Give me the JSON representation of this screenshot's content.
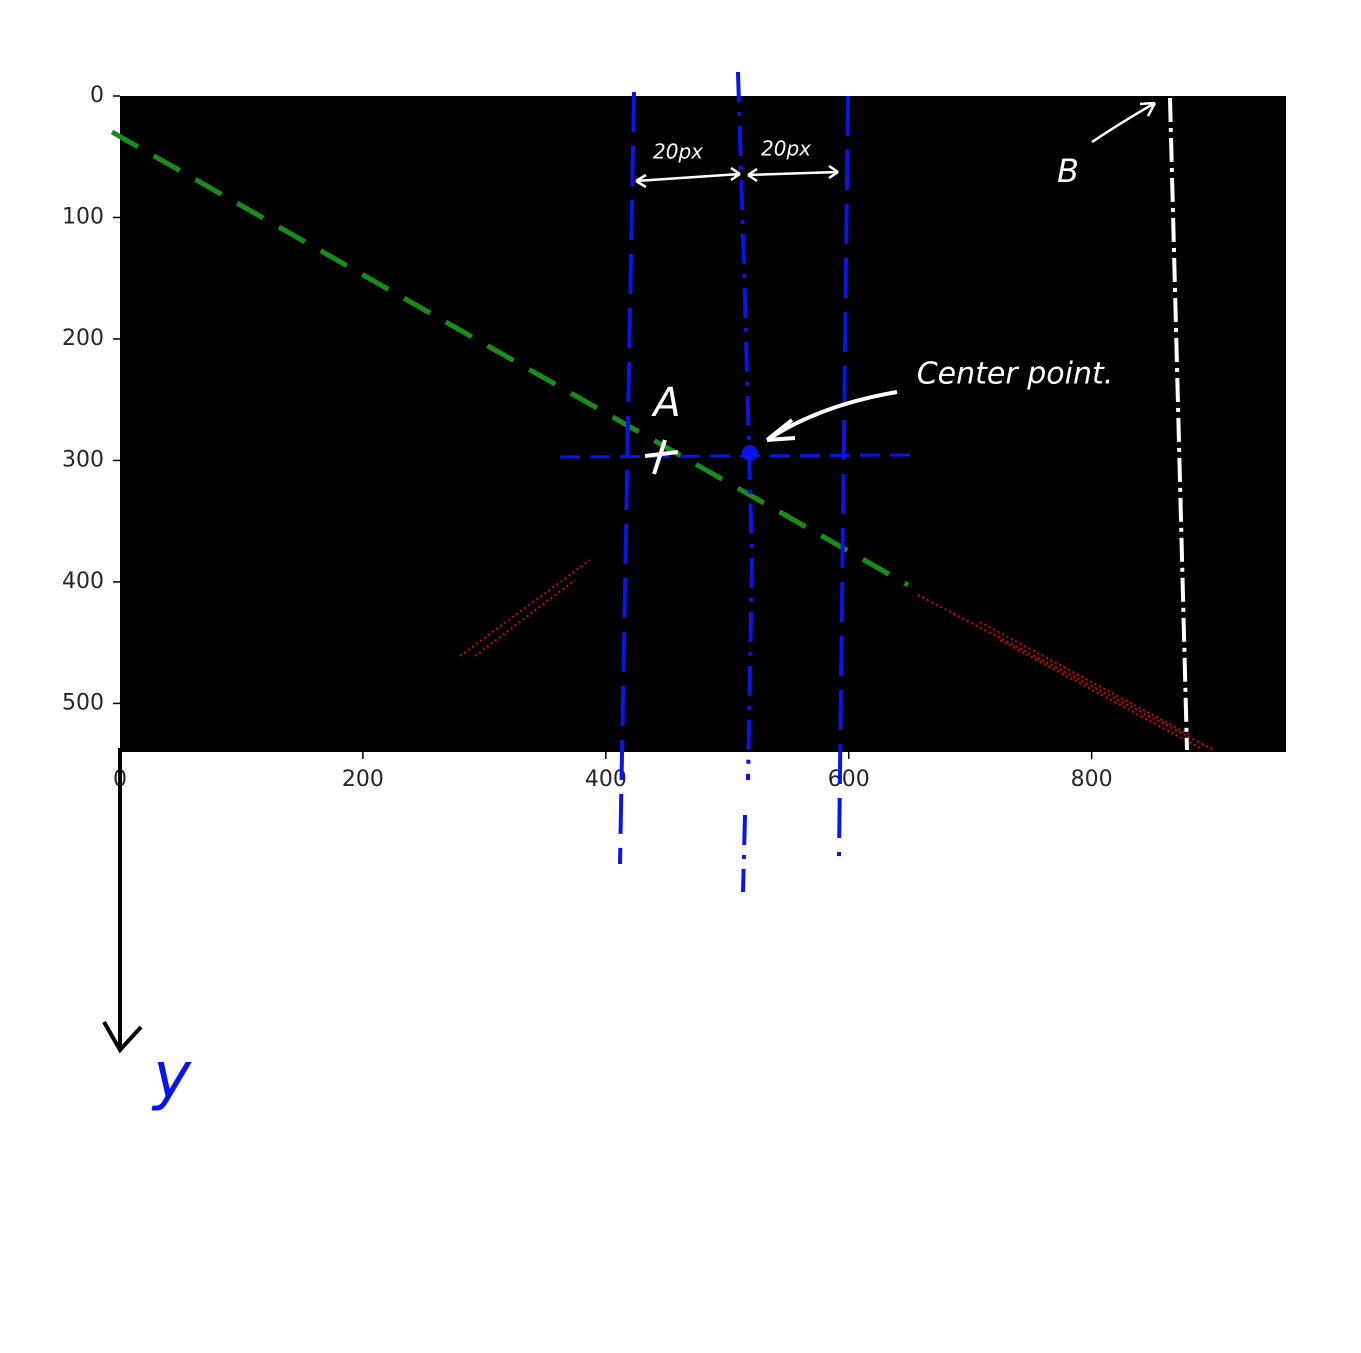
{
  "chart_data": {
    "type": "image",
    "xlim": [
      0,
      960
    ],
    "ylim": [
      540,
      0
    ],
    "xticks": [
      0,
      200,
      400,
      600,
      800
    ],
    "yticks": [
      0,
      100,
      200,
      300,
      400,
      500
    ],
    "annotations": [
      "20px",
      "20px",
      "B",
      "A",
      "Center point.",
      "y"
    ]
  }
}
